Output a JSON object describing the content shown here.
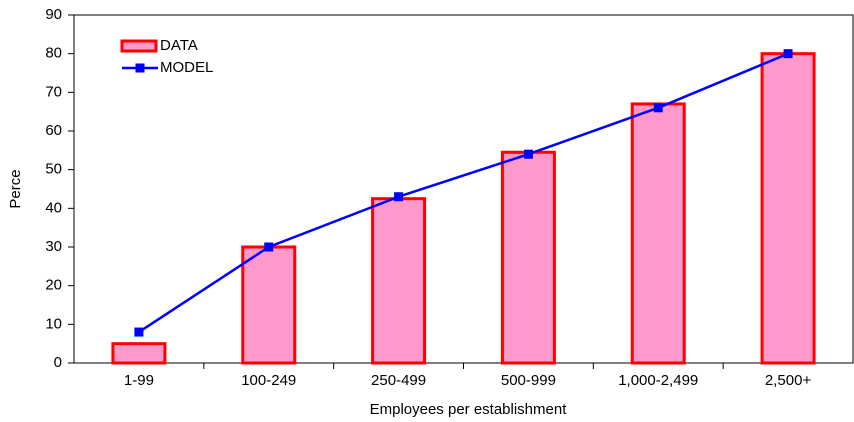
{
  "chart_data": {
    "type": "bar",
    "x_label": "Employees per establishment",
    "y_label": "Perce",
    "categories": [
      "1-99",
      "100-249",
      "250-499",
      "500-999",
      "1,000-2,499",
      "2,500+"
    ],
    "series": [
      {
        "name": "DATA",
        "type": "bar",
        "color": "#ff99cc",
        "edge_color": "#ff0000",
        "values": [
          5,
          30,
          42.5,
          54.5,
          67,
          80
        ]
      },
      {
        "name": "MODEL",
        "type": "line",
        "color": "#0000ff",
        "values": [
          8,
          30,
          43,
          54,
          66,
          80
        ]
      }
    ],
    "ylim": [
      0,
      90
    ],
    "yticks": [
      0,
      10,
      20,
      30,
      40,
      50,
      60,
      70,
      80,
      90
    ],
    "grid": false,
    "legend": "upper left"
  }
}
